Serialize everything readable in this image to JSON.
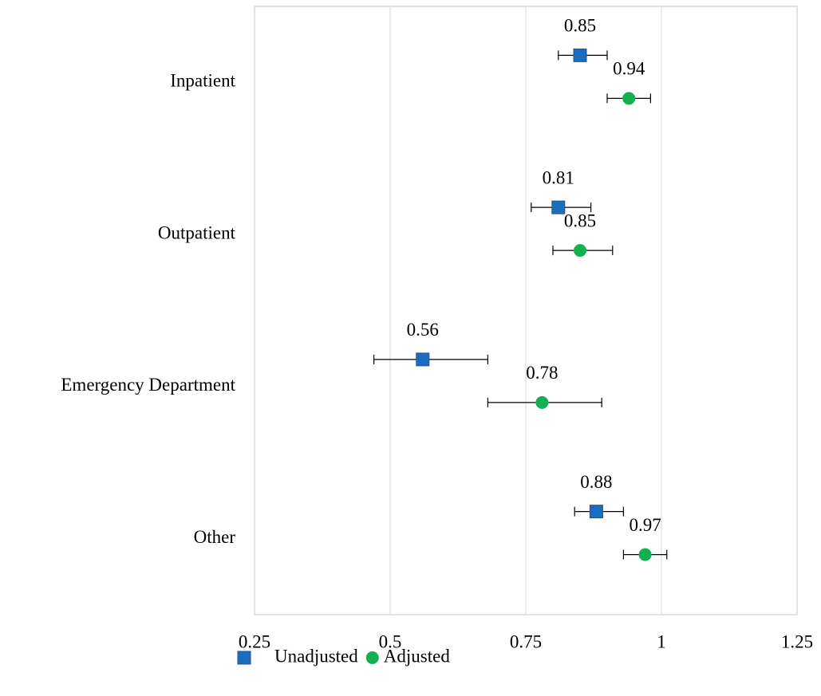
{
  "chart_data": {
    "type": "forest",
    "categories": [
      "Inpatient",
      "Outpatient",
      "Emergency Department",
      "Other"
    ],
    "series": [
      {
        "name": "Unadjusted",
        "color": "#1a6dbf",
        "marker": "square",
        "values": [
          0.85,
          0.81,
          0.56,
          0.88
        ],
        "lower": [
          0.81,
          0.76,
          0.47,
          0.84
        ],
        "upper": [
          0.9,
          0.87,
          0.68,
          0.93
        ]
      },
      {
        "name": "Adjusted",
        "color": "#12b050",
        "marker": "circle",
        "values": [
          0.94,
          0.85,
          0.78,
          0.97
        ],
        "lower": [
          0.9,
          0.8,
          0.68,
          0.93
        ],
        "upper": [
          0.98,
          0.91,
          0.89,
          1.01
        ]
      }
    ],
    "xlim": [
      0.25,
      1.25
    ],
    "xticks": [
      0.25,
      0.5,
      0.75,
      1,
      1.25
    ],
    "grid": true,
    "legend": "bottom"
  }
}
